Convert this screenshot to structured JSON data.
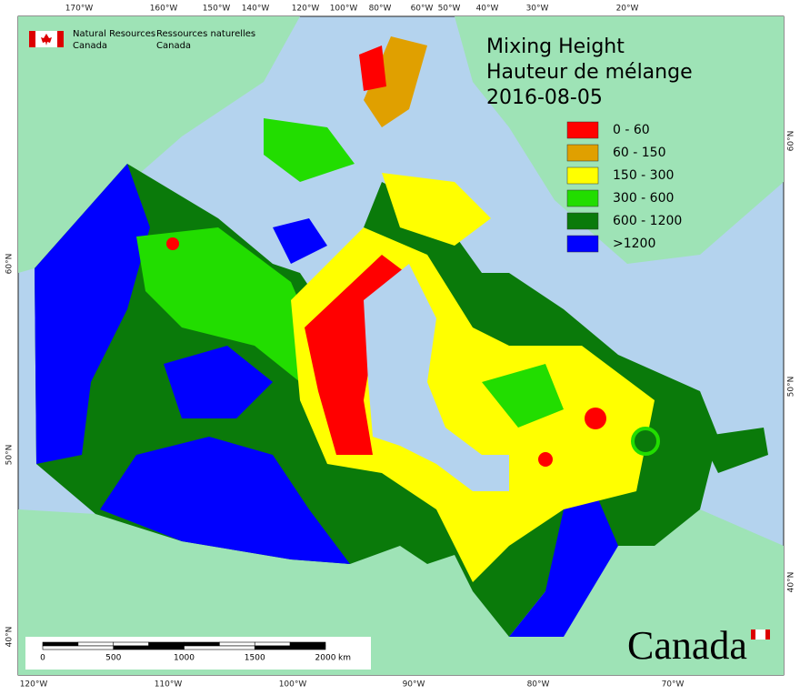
{
  "agency": {
    "en": [
      "Natural Resources",
      "Canada"
    ],
    "fr": [
      "Ressources naturelles",
      "Canada"
    ]
  },
  "title": [
    "Mixing Height",
    "Hauteur de mélange",
    "2016-08-05"
  ],
  "legend": [
    {
      "label": "0 - 60",
      "color": "#ff0000"
    },
    {
      "label": "60 - 150",
      "color": "#e0a000"
    },
    {
      "label": "150 - 300",
      "color": "#ffff00"
    },
    {
      "label": "300 - 600",
      "color": "#22dd00"
    },
    {
      "label": "600 - 1200",
      "color": "#0a7a0a"
    },
    {
      "label": ">1200",
      "color": "#0000ff"
    }
  ],
  "graticule": {
    "top": [
      "170°W",
      "160°W",
      "150°W",
      "140°W",
      "120°W",
      "100°W",
      "80°W",
      "60°W",
      "50°W",
      "40°W",
      "30°W",
      "20°W"
    ],
    "bottom": [
      "120°W",
      "110°W",
      "100°W",
      "90°W",
      "80°W",
      "70°W"
    ],
    "left": [
      "60°N",
      "50°N",
      "40°N"
    ],
    "right": [
      "60°N",
      "50°N",
      "40°N"
    ]
  },
  "scale_bar": {
    "ticks": [
      0,
      500,
      1000,
      1500,
      2000
    ],
    "unit": "km"
  },
  "wordmark": "Canada"
}
